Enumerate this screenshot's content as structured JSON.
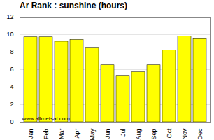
{
  "chart_data": {
    "type": "bar",
    "title": "Ar Rank : sunshine (hours)",
    "categories": [
      "Jan",
      "Feb",
      "Mar",
      "Apr",
      "May",
      "Jun",
      "Jul",
      "Aug",
      "Sep",
      "Oct",
      "Nov",
      "Dec"
    ],
    "values": [
      9.7,
      9.7,
      9.2,
      9.4,
      8.5,
      6.5,
      5.3,
      5.7,
      6.5,
      8.2,
      9.8,
      9.5
    ],
    "color": "#ffff00",
    "ylim": [
      0,
      12
    ],
    "yticks": [
      0,
      2,
      4,
      6,
      8,
      10,
      12
    ],
    "grid": true,
    "annotation": "www.allmetsat.com"
  }
}
